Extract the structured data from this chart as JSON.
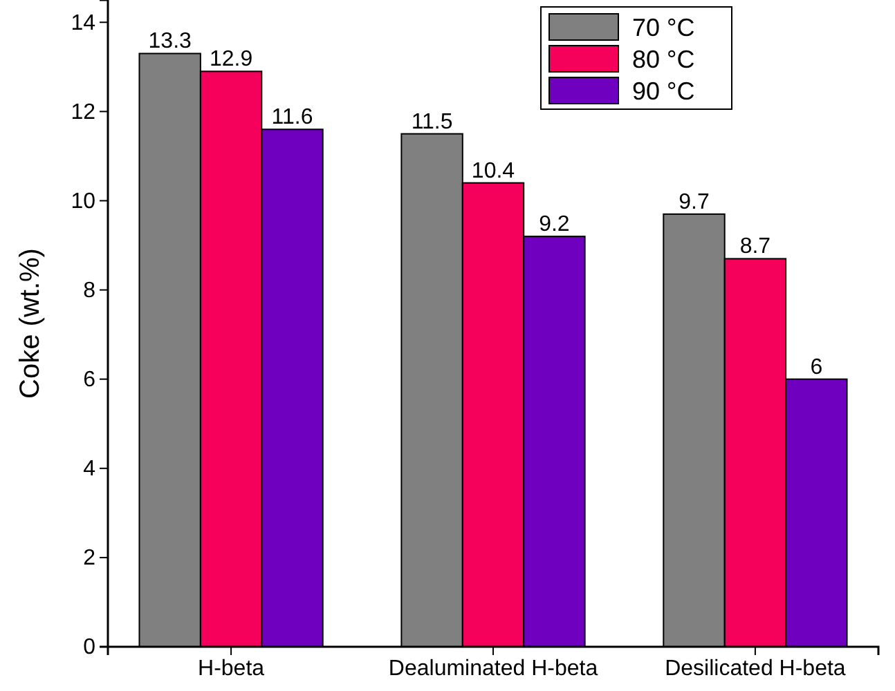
{
  "chart_data": {
    "type": "bar",
    "ylabel": "Coke (wt.%)",
    "categories": [
      "H-beta",
      "Dealuminated H-beta",
      "Desilicated H-beta"
    ],
    "series": [
      {
        "name": "70 °C",
        "color": "#808080",
        "values": [
          13.3,
          11.5,
          9.7
        ]
      },
      {
        "name": "80 °C",
        "color": "#f5005a",
        "values": [
          12.9,
          10.4,
          8.7
        ]
      },
      {
        "name": "90 °C",
        "color": "#7000c0",
        "values": [
          11.6,
          9.2,
          6
        ]
      }
    ],
    "ylim": [
      0,
      14.5
    ],
    "yticks": [
      0,
      2,
      4,
      6,
      8,
      10,
      12,
      14
    ],
    "data_labels": true,
    "legend": "top right",
    "grid": false
  }
}
